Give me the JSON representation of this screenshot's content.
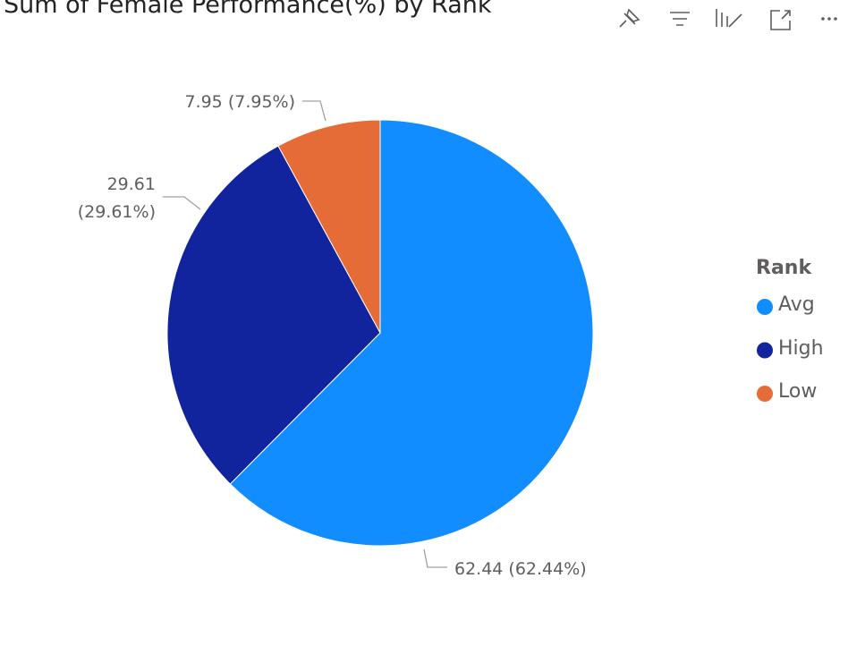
{
  "chart_data": {
    "type": "pie",
    "title": "Sum of Female Performance(%) by Rank",
    "legend_title": "Rank",
    "categories": [
      "Avg",
      "High",
      "Low"
    ],
    "values": [
      62.44,
      29.61,
      7.95
    ],
    "value_labels": [
      "62.44 (62.44%)",
      "29.61 (29.61%)",
      "7.95 (7.95%)"
    ],
    "colors": [
      "#118DFF",
      "#12239E",
      "#E66C37"
    ],
    "legend": "right"
  }
}
